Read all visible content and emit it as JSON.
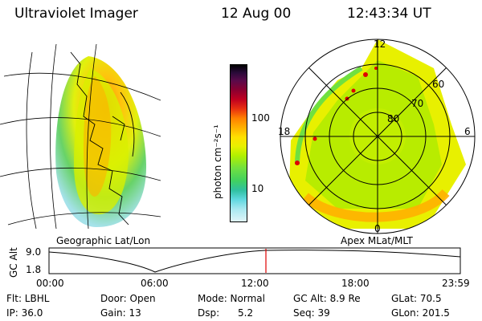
{
  "header": {
    "instrument": "Ultraviolet Imager",
    "date": "12 Aug 00",
    "time": "12:43:34 UT"
  },
  "colorbar": {
    "unit": "photon cm⁻²s⁻¹",
    "ticks": [
      "100",
      "10"
    ],
    "colors": [
      "#000000",
      "#2a0a3a",
      "#5a0a4a",
      "#8a0030",
      "#c00020",
      "#e83010",
      "#ff8000",
      "#ffb000",
      "#ffe000",
      "#e8f000",
      "#b0f000",
      "#70e040",
      "#40d060",
      "#30c0a0",
      "#60d8e0",
      "#a8e8f0",
      "#e0f4f8"
    ]
  },
  "left_panel": {
    "label": "Geographic Lat/Lon"
  },
  "right_panel": {
    "label": "Apex MLat/MLT",
    "mlt_labels": {
      "top": "12",
      "left": "18",
      "right": "6",
      "bottom": "0"
    },
    "mlat_labels": [
      "60",
      "70",
      "80"
    ]
  },
  "altitude_plot": {
    "ylabel": "GC Alt",
    "y_ticks": [
      "9.0",
      "1.8"
    ],
    "x_ticks": [
      "00:00",
      "06:00",
      "12:00",
      "18:00",
      "23:59"
    ],
    "marker_time": "12:43"
  },
  "info": {
    "row1": [
      "Flt: LBHL",
      "Door: Open",
      "Mode: Normal",
      "GC Alt: 8.9 Re",
      "GLat: 70.5"
    ],
    "row2": [
      "IP: 36.0",
      "Gain: 13",
      "Dsp:      5.2",
      "Seq: 39",
      "GLon: 201.5"
    ]
  }
}
